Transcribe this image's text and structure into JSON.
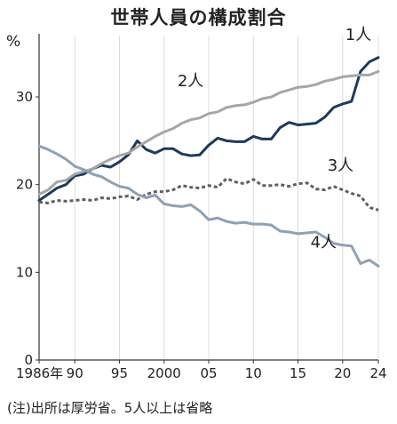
{
  "title": "世帯人員の構成割合",
  "note": "(注)出所は厚労省。5人以上は省略",
  "chart_data": {
    "type": "line",
    "title": "世帯人員の構成割合",
    "ylabel": "%",
    "xlabel": "",
    "ylim": [
      0,
      37
    ],
    "xlim": [
      1986,
      2024
    ],
    "yticks": [
      0,
      10,
      20,
      30
    ],
    "xticks": [
      {
        "value": 1986,
        "label": "1986年"
      },
      {
        "value": 1990,
        "label": "90"
      },
      {
        "value": 1995,
        "label": "95"
      },
      {
        "value": 2000,
        "label": "2000"
      },
      {
        "value": 2005,
        "label": "05"
      },
      {
        "value": 2010,
        "label": "10"
      },
      {
        "value": 2015,
        "label": "15"
      },
      {
        "value": 2020,
        "label": "20"
      },
      {
        "value": 2024,
        "label": "24"
      }
    ],
    "grid": "vertical",
    "series": [
      {
        "name": "1人",
        "color": "#1c3a5e",
        "style": "solid",
        "x": [
          1986,
          1987,
          1988,
          1989,
          1990,
          1991,
          1992,
          1993,
          1994,
          1995,
          1996,
          1997,
          1998,
          1999,
          2000,
          2001,
          2002,
          2003,
          2004,
          2005,
          2006,
          2007,
          2008,
          2009,
          2010,
          2011,
          2012,
          2013,
          2014,
          2015,
          2016,
          2017,
          2018,
          2019,
          2020,
          2021,
          2022,
          2023,
          2024
        ],
        "values": [
          18.2,
          18.9,
          19.6,
          20.0,
          21.0,
          21.2,
          21.8,
          22.2,
          22.0,
          22.6,
          23.4,
          25.0,
          24.0,
          23.6,
          24.1,
          24.1,
          23.5,
          23.3,
          23.4,
          24.5,
          25.3,
          25.0,
          24.9,
          24.9,
          25.5,
          25.2,
          25.2,
          26.5,
          27.1,
          26.8,
          26.9,
          27.0,
          27.7,
          28.8,
          29.2,
          29.5,
          32.9,
          34.0,
          34.5
        ]
      },
      {
        "name": "2人",
        "color": "#a6a6a6",
        "style": "solid",
        "x": [
          1986,
          1987,
          1988,
          1989,
          1990,
          1991,
          1992,
          1993,
          1994,
          1995,
          1996,
          1997,
          1998,
          1999,
          2000,
          2001,
          2002,
          2003,
          2004,
          2005,
          2006,
          2007,
          2008,
          2009,
          2010,
          2011,
          2012,
          2013,
          2014,
          2015,
          2016,
          2017,
          2018,
          2019,
          2020,
          2021,
          2022,
          2023,
          2024
        ],
        "values": [
          18.9,
          19.4,
          20.3,
          20.5,
          21.2,
          21.5,
          21.8,
          22.4,
          22.9,
          23.3,
          23.6,
          24.3,
          24.9,
          25.5,
          26.0,
          26.4,
          27.0,
          27.4,
          27.6,
          28.1,
          28.3,
          28.8,
          29.0,
          29.1,
          29.4,
          29.8,
          30.0,
          30.5,
          30.8,
          31.1,
          31.2,
          31.4,
          31.8,
          32.0,
          32.3,
          32.4,
          32.5,
          32.5,
          32.9
        ]
      },
      {
        "name": "3人",
        "color": "#5f5f5f",
        "style": "dashed",
        "x": [
          1986,
          1987,
          1988,
          1989,
          1990,
          1991,
          1992,
          1993,
          1994,
          1995,
          1996,
          1997,
          1998,
          1999,
          2000,
          2001,
          2002,
          2003,
          2004,
          2005,
          2006,
          2007,
          2008,
          2009,
          2010,
          2011,
          2012,
          2013,
          2014,
          2015,
          2016,
          2017,
          2018,
          2019,
          2020,
          2021,
          2022,
          2023,
          2024
        ],
        "values": [
          18.0,
          17.9,
          18.2,
          18.1,
          18.2,
          18.3,
          18.2,
          18.5,
          18.4,
          18.6,
          18.7,
          18.3,
          18.9,
          19.2,
          19.2,
          19.4,
          19.9,
          19.7,
          19.6,
          19.9,
          19.7,
          20.7,
          20.3,
          20.1,
          20.6,
          19.9,
          19.9,
          20.0,
          19.8,
          20.1,
          20.2,
          19.5,
          19.4,
          19.8,
          19.4,
          19.0,
          18.7,
          17.4,
          17.1
        ]
      },
      {
        "name": "4人",
        "color": "#8fa1b3",
        "style": "solid",
        "x": [
          1986,
          1987,
          1988,
          1989,
          1990,
          1991,
          1992,
          1993,
          1994,
          1995,
          1996,
          1997,
          1998,
          1999,
          2000,
          2001,
          2002,
          2003,
          2004,
          2005,
          2006,
          2007,
          2008,
          2009,
          2010,
          2011,
          2012,
          2013,
          2014,
          2015,
          2016,
          2017,
          2018,
          2019,
          2020,
          2021,
          2022,
          2023,
          2024
        ],
        "values": [
          24.4,
          24.0,
          23.5,
          22.9,
          22.1,
          21.7,
          21.2,
          20.9,
          20.3,
          19.8,
          19.6,
          18.9,
          18.5,
          18.8,
          17.8,
          17.6,
          17.5,
          17.7,
          17.0,
          16.0,
          16.2,
          15.8,
          15.6,
          15.7,
          15.5,
          15.5,
          15.4,
          14.7,
          14.6,
          14.4,
          14.5,
          14.6,
          14.0,
          13.3,
          13.1,
          13.0,
          11.0,
          11.4,
          10.7
        ]
      }
    ]
  }
}
